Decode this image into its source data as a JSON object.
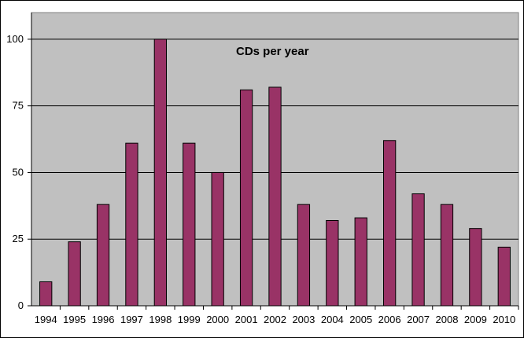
{
  "chart_data": {
    "type": "bar",
    "title": "CDs per year",
    "xlabel": "",
    "ylabel": "",
    "categories": [
      "1994",
      "1995",
      "1996",
      "1997",
      "1998",
      "1999",
      "2000",
      "2001",
      "2002",
      "2003",
      "2004",
      "2005",
      "2006",
      "2007",
      "2008",
      "2009",
      "2010"
    ],
    "series": [
      {
        "values": [
          9,
          24,
          38,
          61,
          100,
          61,
          50,
          81,
          82,
          38,
          32,
          33,
          62,
          42,
          38,
          29,
          22
        ]
      }
    ],
    "ylim": [
      0,
      110
    ],
    "yticks": [
      0,
      25,
      50,
      75,
      100
    ],
    "grid": true,
    "legend": "none",
    "colors": {
      "plot_background": "#c0c0c0",
      "bar_fill": "#993366",
      "bar_stroke": "#000000",
      "gridline": "#000000"
    }
  }
}
